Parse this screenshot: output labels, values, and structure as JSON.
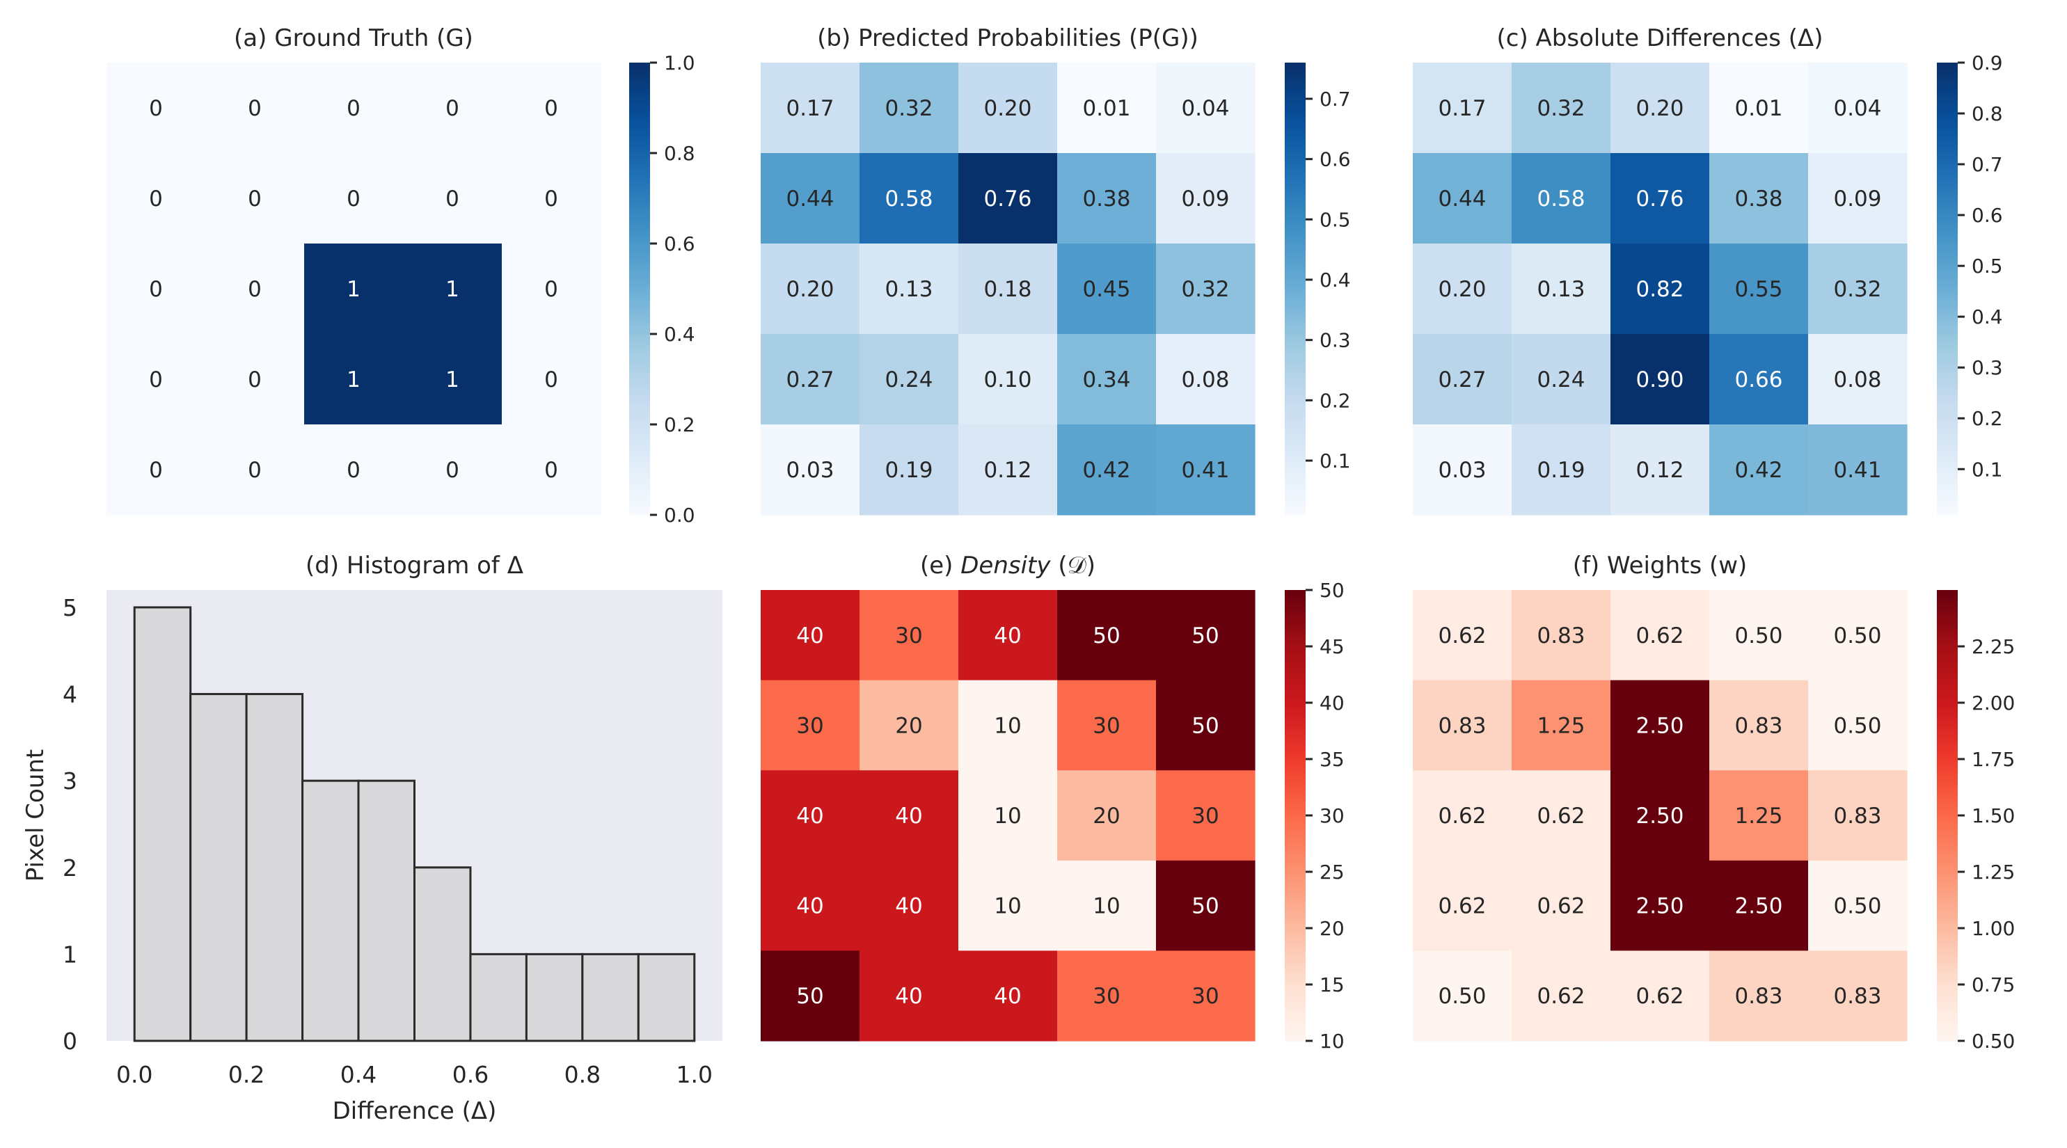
{
  "chart_data": [
    {
      "id": "a",
      "type": "heatmap",
      "title": "(a) Ground Truth (G)",
      "colormap": "Blues",
      "vmin": 0,
      "vmax": 1,
      "value_format": "int",
      "values": [
        [
          0,
          0,
          0,
          0,
          0
        ],
        [
          0,
          0,
          0,
          0,
          0
        ],
        [
          0,
          0,
          1,
          1,
          0
        ],
        [
          0,
          0,
          1,
          1,
          0
        ],
        [
          0,
          0,
          0,
          0,
          0
        ]
      ],
      "colorbar_ticks": [
        "0.0",
        "0.2",
        "0.4",
        "0.6",
        "0.8",
        "1.0"
      ]
    },
    {
      "id": "b",
      "type": "heatmap",
      "title": "(b) Predicted Probabilities (P(G))",
      "colormap": "Blues",
      "vmin": 0.01,
      "vmax": 0.76,
      "value_format": "2f",
      "values": [
        [
          0.17,
          0.32,
          0.2,
          0.01,
          0.04
        ],
        [
          0.44,
          0.58,
          0.76,
          0.38,
          0.09
        ],
        [
          0.2,
          0.13,
          0.18,
          0.45,
          0.32
        ],
        [
          0.27,
          0.24,
          0.1,
          0.34,
          0.08
        ],
        [
          0.03,
          0.19,
          0.12,
          0.42,
          0.41
        ]
      ],
      "colorbar_ticks": [
        "0.1",
        "0.2",
        "0.3",
        "0.4",
        "0.5",
        "0.6",
        "0.7"
      ]
    },
    {
      "id": "c",
      "type": "heatmap",
      "title": "(c) Absolute Differences (Δ)",
      "colormap": "Blues",
      "vmin": 0.01,
      "vmax": 0.9,
      "value_format": "2f",
      "values": [
        [
          0.17,
          0.32,
          0.2,
          0.01,
          0.04
        ],
        [
          0.44,
          0.58,
          0.76,
          0.38,
          0.09
        ],
        [
          0.2,
          0.13,
          0.82,
          0.55,
          0.32
        ],
        [
          0.27,
          0.24,
          0.9,
          0.66,
          0.08
        ],
        [
          0.03,
          0.19,
          0.12,
          0.42,
          0.41
        ]
      ],
      "colorbar_ticks": [
        "0.1",
        "0.2",
        "0.3",
        "0.4",
        "0.5",
        "0.6",
        "0.7",
        "0.8",
        "0.9"
      ]
    },
    {
      "id": "d",
      "type": "bar",
      "title": "(d) Histogram of Δ",
      "xlabel": "Difference (Δ)",
      "ylabel": "Pixel Count",
      "bin_edges": [
        0.0,
        0.1,
        0.2,
        0.3,
        0.4,
        0.5,
        0.6,
        0.7,
        0.8,
        0.9,
        1.0
      ],
      "values": [
        5,
        4,
        4,
        3,
        3,
        2,
        1,
        1,
        1,
        1
      ],
      "xlim": [
        -0.05,
        1.05
      ],
      "ylim": [
        0,
        5.2
      ],
      "xticks": [
        "0.0",
        "0.2",
        "0.4",
        "0.6",
        "0.8",
        "1.0"
      ],
      "yticks": [
        "0",
        "1",
        "2",
        "3",
        "4",
        "5"
      ]
    },
    {
      "id": "e",
      "type": "heatmap",
      "title_prefix": "(e) ",
      "title_italic": "Density",
      "title_suffix": " (𝒟)",
      "colormap": "Reds",
      "vmin": 10,
      "vmax": 50,
      "value_format": "int",
      "values": [
        [
          40,
          30,
          40,
          50,
          50
        ],
        [
          30,
          20,
          10,
          30,
          50
        ],
        [
          40,
          40,
          10,
          20,
          30
        ],
        [
          40,
          40,
          10,
          10,
          50
        ],
        [
          50,
          40,
          40,
          30,
          30
        ]
      ],
      "colorbar_ticks": [
        "10",
        "15",
        "20",
        "25",
        "30",
        "35",
        "40",
        "45",
        "50"
      ]
    },
    {
      "id": "f",
      "type": "heatmap",
      "title": "(f) Weights (w)",
      "colormap": "Reds",
      "vmin": 0.5,
      "vmax": 2.5,
      "value_format": "2f",
      "values": [
        [
          0.62,
          0.83,
          0.62,
          0.5,
          0.5
        ],
        [
          0.83,
          1.25,
          2.5,
          0.83,
          0.5
        ],
        [
          0.62,
          0.62,
          2.5,
          1.25,
          0.83
        ],
        [
          0.62,
          0.62,
          2.5,
          2.5,
          0.5
        ],
        [
          0.5,
          0.62,
          0.62,
          0.83,
          0.83
        ]
      ],
      "colorbar_ticks": [
        "0.50",
        "0.75",
        "1.00",
        "1.25",
        "1.50",
        "1.75",
        "2.00",
        "2.25"
      ]
    }
  ]
}
